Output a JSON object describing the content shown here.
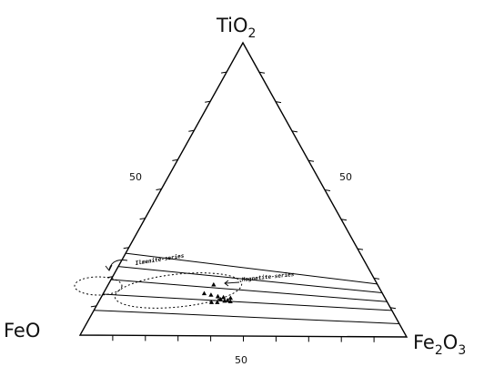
{
  "chart_data": {
    "type": "scatter",
    "subtype": "ternary",
    "vertices": {
      "top": "TiO2",
      "left": "FeO",
      "right": "Fe2O3"
    },
    "vertex_labels": {
      "top": {
        "base": "TiO",
        "sub": "2"
      },
      "left": {
        "base": "FeO",
        "sub": ""
      },
      "right": {
        "base": "Fe",
        "sub": "2",
        "after": "O",
        "sub2": "3"
      }
    },
    "tick_labels": {
      "left_edge": "50",
      "right_edge": "50",
      "bottom_edge": "50"
    },
    "tick_fractions": [
      0.1,
      0.2,
      0.3,
      0.4,
      0.5,
      0.6,
      0.7,
      0.8,
      0.9
    ],
    "tie_lines": [
      {
        "feo_end": [
          0.72,
          0.28
        ],
        "fe2o3_end": [
          0.82,
          0.18
        ]
      },
      {
        "feo_end": [
          0.765,
          0.235
        ],
        "fe2o3_end": [
          0.85,
          0.15
        ]
      },
      {
        "feo_end": [
          0.81,
          0.19
        ],
        "fe2o3_end": [
          0.88,
          0.12
        ]
      },
      {
        "feo_end": [
          0.86,
          0.14
        ],
        "fe2o3_end": [
          0.91,
          0.09
        ]
      },
      {
        "feo_end": [
          0.915,
          0.085
        ],
        "fe2o3_end": [
          0.955,
          0.045
        ]
      }
    ],
    "series_labels": {
      "ilmenite": "Ilmenite-series",
      "magnetite": "Magnetite-series"
    },
    "points_tio2": [
      {
        "tio2": 0.175,
        "fe2o3_share": 0.39
      },
      {
        "tio2": 0.145,
        "fe2o3_share": 0.36
      },
      {
        "tio2": 0.14,
        "fe2o3_share": 0.385
      },
      {
        "tio2": 0.135,
        "fe2o3_share": 0.41
      },
      {
        "tio2": 0.132,
        "fe2o3_share": 0.43
      },
      {
        "tio2": 0.13,
        "fe2o3_share": 0.455
      },
      {
        "tio2": 0.12,
        "fe2o3_share": 0.435
      },
      {
        "tio2": 0.115,
        "fe2o3_share": 0.39
      },
      {
        "tio2": 0.115,
        "fe2o3_share": 0.41
      },
      {
        "tio2": 0.125,
        "fe2o3_share": 0.42
      },
      {
        "tio2": 0.122,
        "fe2o3_share": 0.445
      },
      {
        "tio2": 0.118,
        "fe2o3_share": 0.455
      }
    ]
  }
}
